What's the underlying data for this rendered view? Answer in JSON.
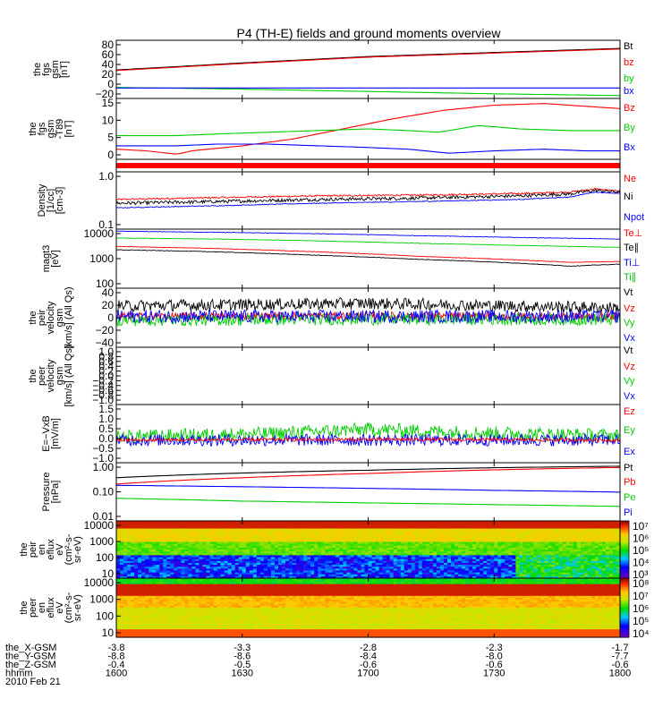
{
  "chart_data": {
    "type": "line",
    "title": "P4 (TH-E) fields and ground moments overview",
    "x_ticks": [
      "1600",
      "1630",
      "1700",
      "1730",
      "1800"
    ],
    "xlim": [
      "1600",
      "1800"
    ],
    "date": "2010 Feb 21",
    "orbit_rows": [
      {
        "label": "the_X-GSM",
        "values": [
          "-3.8",
          "-3.3",
          "-2.8",
          "-2.3",
          "-1.7"
        ]
      },
      {
        "label": "the_Y-GSM",
        "values": [
          "-8.8",
          "-8.6",
          "-8.4",
          "-8.0",
          "-7.7"
        ]
      },
      {
        "label": "the_Z-GSM",
        "values": [
          "-0.4",
          "-0.5",
          "-0.6",
          "-0.6",
          "-0.6"
        ]
      },
      {
        "label": "hhmm",
        "values": []
      }
    ],
    "panels": [
      {
        "id": "fgs_gsm",
        "ylabel_lines": [
          "the",
          "fgs",
          "gsm",
          "[nT]"
        ],
        "yticks": [
          "80",
          "60",
          "40",
          "20",
          "0",
          "−20"
        ],
        "ylim": [
          -20,
          80
        ],
        "legend": [
          "Bt",
          "bz",
          "by",
          "bx"
        ],
        "series": [
          {
            "name": "Bt",
            "color": "#000000",
            "x": [
              0,
              0.25,
              0.5,
              0.75,
              1
            ],
            "y": [
              29,
              41,
              52,
              59,
              66
            ]
          },
          {
            "name": "bz",
            "color": "#ff0000",
            "x": [
              0,
              0.25,
              0.5,
              0.75,
              1
            ],
            "y": [
              28,
              40,
              51,
              58,
              65
            ]
          },
          {
            "name": "by",
            "color": "#00cc00",
            "x": [
              0,
              0.25,
              0.5,
              0.75,
              1
            ],
            "y": [
              -1,
              -4,
              -8,
              -12,
              -15
            ]
          },
          {
            "name": "bx",
            "color": "#0000ff",
            "x": [
              0,
              0.25,
              0.5,
              0.75,
              1
            ],
            "y": [
              -2,
              -2,
              -2,
              -2,
              -2
            ]
          }
        ]
      },
      {
        "id": "fgs_gse_t89",
        "ylabel_lines": [
          "the",
          "fgs",
          "gsm",
          "-T89",
          "[nT]"
        ],
        "yticks": [
          "15",
          "10",
          "5",
          "0"
        ],
        "ylim": [
          -1,
          17
        ],
        "legend": [
          "Bz",
          "By",
          "Bx"
        ],
        "series": [
          {
            "name": "Bz",
            "color": "#ff0000",
            "x": [
              0,
              0.06,
              0.12,
              0.15,
              0.25,
              0.35,
              0.45,
              0.55,
              0.65,
              0.75,
              0.85,
              0.95,
              1
            ],
            "y": [
              2,
              1.5,
              0.5,
              1.5,
              3,
              5,
              8,
              11,
              13.5,
              15,
              15.5,
              14.5,
              14
            ]
          },
          {
            "name": "By",
            "color": "#00cc00",
            "x": [
              0,
              0.12,
              0.2,
              0.3,
              0.4,
              0.5,
              0.58,
              0.64,
              0.72,
              0.8,
              0.9,
              1
            ],
            "y": [
              6,
              6,
              6.5,
              7,
              7.5,
              8,
              7.5,
              7,
              9,
              8,
              7.5,
              7.5
            ]
          },
          {
            "name": "Bx",
            "color": "#0000ff",
            "x": [
              0,
              0.12,
              0.2,
              0.3,
              0.4,
              0.5,
              0.58,
              0.66,
              0.75,
              0.85,
              0.93,
              1
            ],
            "y": [
              3,
              3,
              3.5,
              3.5,
              3,
              2.5,
              2,
              0.8,
              1.5,
              2,
              1.5,
              1.5
            ]
          }
        ]
      },
      {
        "id": "mode_bar",
        "ylabel_lines": [],
        "yticks": [],
        "legend": [],
        "bar_color": "#ff0000"
      },
      {
        "id": "density",
        "ylabel_lines": [
          "Density",
          "[1/cc]",
          "[cm-3]"
        ],
        "yticks": [
          "1.0",
          "0.1"
        ],
        "ylim": [
          0.1,
          1.6
        ],
        "log": true,
        "legend": [
          "Ne",
          "Ni",
          "Npot"
        ],
        "series": [
          {
            "name": "Ne",
            "color": "#ff0000",
            "noise": 0.04,
            "x": [
              0,
              0.2,
              0.4,
              0.6,
              0.8,
              0.9,
              0.95,
              1
            ],
            "y": [
              0.42,
              0.46,
              0.5,
              0.52,
              0.56,
              0.6,
              0.7,
              0.62
            ]
          },
          {
            "name": "Ni",
            "color": "#000000",
            "noise": 0.08,
            "x": [
              0,
              0.2,
              0.4,
              0.6,
              0.8,
              0.9,
              0.95,
              1
            ],
            "y": [
              0.35,
              0.38,
              0.42,
              0.45,
              0.5,
              0.55,
              0.65,
              0.6
            ]
          },
          {
            "name": "Npot",
            "color": "#0000ff",
            "noise": 0.02,
            "x": [
              0,
              0.2,
              0.4,
              0.6,
              0.8,
              0.9,
              0.95,
              1
            ],
            "y": [
              0.28,
              0.31,
              0.35,
              0.38,
              0.42,
              0.47,
              0.6,
              0.56
            ]
          }
        ]
      },
      {
        "id": "moms_t3",
        "ylabel_lines": [
          "magt3",
          "[eV]"
        ],
        "yticks": [
          "10000",
          "1000",
          "100"
        ],
        "ylim": [
          100,
          10000
        ],
        "log": true,
        "legend": [
          "Te⊥",
          "Te∥",
          "Ti⊥",
          "Ti∥"
        ],
        "series": [
          {
            "name": "Ti⊥",
            "color": "#0000ff",
            "noise": 0.02,
            "x": [
              0,
              0.2,
              0.4,
              0.6,
              0.8,
              1
            ],
            "y": [
              8500,
              7800,
              7000,
              6000,
              5200,
              4600
            ]
          },
          {
            "name": "Ti∥",
            "color": "#00cc00",
            "noise": 0.02,
            "x": [
              0,
              0.2,
              0.4,
              0.6,
              0.8,
              1
            ],
            "y": [
              5000,
              4600,
              4000,
              3300,
              2800,
              2400
            ]
          },
          {
            "name": "Te⊥",
            "color": "#ff0000",
            "noise": 0.02,
            "x": [
              0,
              0.2,
              0.4,
              0.6,
              0.8,
              0.9,
              1
            ],
            "y": [
              2600,
              2200,
              1700,
              1200,
              900,
              750,
              800
            ]
          },
          {
            "name": "Te∥",
            "color": "#000000",
            "noise": 0.02,
            "x": [
              0,
              0.2,
              0.4,
              0.6,
              0.8,
              0.9,
              1
            ],
            "y": [
              2000,
              1700,
              1300,
              950,
              700,
              560,
              650
            ]
          }
        ]
      },
      {
        "id": "peir_velocity",
        "ylabel_lines": [
          "the",
          "peir",
          "velocity",
          "gsm",
          "[km/s] (All Qs)"
        ],
        "yticks": [
          "40",
          "20",
          "0",
          "−20",
          "−40"
        ],
        "ylim": [
          -45,
          45
        ],
        "legend": [
          "Vt",
          "Vz",
          "Vy",
          "Vx"
        ],
        "series": [
          {
            "name": "Vt",
            "color": "#000000",
            "noise": 9,
            "x": [
              0,
              0.5,
              1
            ],
            "y": [
              18,
              22,
              15
            ]
          },
          {
            "name": "Vz",
            "color": "#ff0000",
            "noise": 6,
            "x": [
              0,
              0.5,
              1
            ],
            "y": [
              2,
              3,
              2
            ]
          },
          {
            "name": "Vy",
            "color": "#00cc00",
            "noise": 9,
            "x": [
              0,
              0.5,
              1
            ],
            "y": [
              -4,
              -2,
              -3
            ]
          },
          {
            "name": "Vx",
            "color": "#0000ff",
            "noise": 10,
            "x": [
              0,
              0.5,
              1
            ],
            "y": [
              2,
              2,
              2
            ]
          }
        ]
      },
      {
        "id": "peer_velocity",
        "ylabel_lines": [
          "the",
          "peer",
          "velocity",
          "gsm",
          "[km/s] (All Qs)"
        ],
        "yticks": [
          "1.0",
          "0.8",
          "0.6",
          "0.4",
          "0.2",
          "0.0",
          "−0.2",
          "−0.4",
          "−0.6",
          "−0.8",
          "−1.0"
        ],
        "ylim": [
          -1,
          1
        ],
        "legend": [
          "Vt",
          "Vz",
          "Vy",
          "Vx"
        ],
        "series": []
      },
      {
        "id": "e_vxb",
        "ylabel_lines": [
          "E=−VxB",
          "[mV/m]"
        ],
        "yticks": [
          "1.5",
          "1.0",
          "0.5",
          "0.0",
          "−0.5",
          "−1.0"
        ],
        "ylim": [
          -1,
          1.7
        ],
        "legend": [
          "Ez",
          "Ey",
          "Ex"
        ],
        "series": [
          {
            "name": "Ey",
            "color": "#00cc00",
            "noise": 0.32,
            "x": [
              0,
              0.3,
              0.5,
              0.7,
              1
            ],
            "y": [
              0.2,
              0.35,
              0.55,
              0.4,
              0.25
            ]
          },
          {
            "name": "Ex",
            "color": "#0000ff",
            "noise": 0.28,
            "x": [
              0,
              0.5,
              1
            ],
            "y": [
              0.05,
              0.05,
              0.05
            ]
          },
          {
            "name": "Ez",
            "color": "#ff0000",
            "noise": 0.08,
            "x": [
              0,
              0.5,
              1
            ],
            "y": [
              0.05,
              0.08,
              0.05
            ]
          }
        ]
      },
      {
        "id": "pressure",
        "ylabel_lines": [
          "Pressure",
          "[nPa]"
        ],
        "yticks": [
          "1.00",
          "0.10",
          "0.01"
        ],
        "ylim": [
          0.008,
          3
        ],
        "log": true,
        "legend": [
          "Pt",
          "Pb",
          "Pe",
          "Pi"
        ],
        "series": [
          {
            "name": "Pt",
            "color": "#000000",
            "x": [
              0,
              0.25,
              0.5,
              0.75,
              1
            ],
            "y": [
              0.65,
              1.05,
              1.4,
              1.8,
              2.1
            ]
          },
          {
            "name": "Pb",
            "color": "#ff0000",
            "x": [
              0,
              0.25,
              0.5,
              0.75,
              1
            ],
            "y": [
              0.34,
              0.65,
              1.0,
              1.45,
              1.85
            ]
          },
          {
            "name": "Pi",
            "color": "#0000ff",
            "x": [
              0,
              0.25,
              0.5,
              0.75,
              1
            ],
            "y": [
              0.3,
              0.26,
              0.22,
              0.18,
              0.15
            ]
          },
          {
            "name": "Pe",
            "color": "#00cc00",
            "x": [
              0,
              0.25,
              0.5,
              0.75,
              1
            ],
            "y": [
              0.08,
              0.06,
              0.05,
              0.042,
              0.035
            ]
          }
        ]
      },
      {
        "id": "peir_en_eflux",
        "ylabel_lines": [
          "the",
          "peir",
          "en",
          "eflux",
          "eV",
          "(cm²-s-",
          "sr-eV)"
        ],
        "yticks": [
          "10000",
          "1000",
          "100",
          "10"
        ],
        "colorbar_ticks": [
          "10⁷",
          "10⁶",
          "10⁵",
          "10⁴",
          "10³"
        ],
        "legend": []
      },
      {
        "id": "peer_en_eflux",
        "ylabel_lines": [
          "the",
          "peer",
          "en",
          "eflux",
          "eV",
          "(cm²-s-",
          "sr-eV)"
        ],
        "yticks": [
          "10000",
          "1000",
          "100",
          "10"
        ],
        "colorbar_ticks": [
          "10⁸",
          "10⁷",
          "10⁶",
          "10⁵",
          "10⁴"
        ],
        "legend": []
      }
    ]
  }
}
